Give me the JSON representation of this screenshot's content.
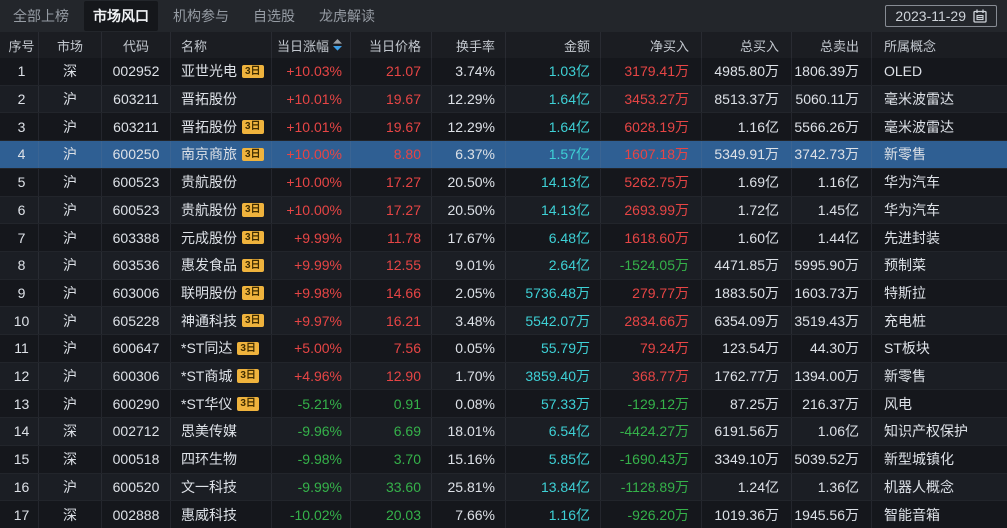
{
  "tabs": [
    {
      "id": "all-ranked",
      "label": "全部上榜",
      "active": false
    },
    {
      "id": "market-hotspot",
      "label": "市场风口",
      "active": true
    },
    {
      "id": "institution",
      "label": "机构参与",
      "active": false
    },
    {
      "id": "watchlist",
      "label": "自选股",
      "active": false
    },
    {
      "id": "dragon-tiger",
      "label": "龙虎解读",
      "active": false
    }
  ],
  "date_picker": {
    "value": "2023-11-29",
    "icon": "calendar-icon"
  },
  "columns": [
    {
      "key": "idx",
      "label": "序号"
    },
    {
      "key": "market",
      "label": "市场"
    },
    {
      "key": "code",
      "label": "代码"
    },
    {
      "key": "name",
      "label": "名称"
    },
    {
      "key": "change",
      "label": "当日涨幅",
      "sortable": true,
      "sort_direction": "desc"
    },
    {
      "key": "price",
      "label": "当日价格"
    },
    {
      "key": "turnover",
      "label": "换手率"
    },
    {
      "key": "amount",
      "label": "金额"
    },
    {
      "key": "net_buy",
      "label": "净买入"
    },
    {
      "key": "total_buy",
      "label": "总买入"
    },
    {
      "key": "total_sell",
      "label": "总卖出"
    },
    {
      "key": "concept",
      "label": "所属概念"
    }
  ],
  "rows": [
    {
      "idx": "1",
      "market": "深",
      "code": "002952",
      "name": "亚世光电",
      "badge": "3日",
      "change": "+10.03%",
      "price": "21.07",
      "turnover": "3.74%",
      "amount": "1.03亿",
      "net_buy": "3179.41万",
      "total_buy": "4985.80万",
      "total_sell": "1806.39万",
      "concept": "OLED",
      "highlighted": false
    },
    {
      "idx": "2",
      "market": "沪",
      "code": "603211",
      "name": "晋拓股份",
      "badge": "",
      "change": "+10.01%",
      "price": "19.67",
      "turnover": "12.29%",
      "amount": "1.64亿",
      "net_buy": "3453.27万",
      "total_buy": "8513.37万",
      "total_sell": "5060.11万",
      "concept": "毫米波雷达",
      "highlighted": false
    },
    {
      "idx": "3",
      "market": "沪",
      "code": "603211",
      "name": "晋拓股份",
      "badge": "3日",
      "change": "+10.01%",
      "price": "19.67",
      "turnover": "12.29%",
      "amount": "1.64亿",
      "net_buy": "6028.19万",
      "total_buy": "1.16亿",
      "total_sell": "5566.26万",
      "concept": "毫米波雷达",
      "highlighted": false
    },
    {
      "idx": "4",
      "market": "沪",
      "code": "600250",
      "name": "南京商旅",
      "badge": "3日",
      "change": "+10.00%",
      "price": "8.80",
      "turnover": "6.37%",
      "amount": "1.57亿",
      "net_buy": "1607.18万",
      "total_buy": "5349.91万",
      "total_sell": "3742.73万",
      "concept": "新零售",
      "highlighted": true
    },
    {
      "idx": "5",
      "market": "沪",
      "code": "600523",
      "name": "贵航股份",
      "badge": "",
      "change": "+10.00%",
      "price": "17.27",
      "turnover": "20.50%",
      "amount": "14.13亿",
      "net_buy": "5262.75万",
      "total_buy": "1.69亿",
      "total_sell": "1.16亿",
      "concept": "华为汽车",
      "highlighted": false
    },
    {
      "idx": "6",
      "market": "沪",
      "code": "600523",
      "name": "贵航股份",
      "badge": "3日",
      "change": "+10.00%",
      "price": "17.27",
      "turnover": "20.50%",
      "amount": "14.13亿",
      "net_buy": "2693.99万",
      "total_buy": "1.72亿",
      "total_sell": "1.45亿",
      "concept": "华为汽车",
      "highlighted": false
    },
    {
      "idx": "7",
      "market": "沪",
      "code": "603388",
      "name": "元成股份",
      "badge": "3日",
      "change": "+9.99%",
      "price": "11.78",
      "turnover": "17.67%",
      "amount": "6.48亿",
      "net_buy": "1618.60万",
      "total_buy": "1.60亿",
      "total_sell": "1.44亿",
      "concept": "先进封装",
      "highlighted": false
    },
    {
      "idx": "8",
      "market": "沪",
      "code": "603536",
      "name": "惠发食品",
      "badge": "3日",
      "change": "+9.99%",
      "price": "12.55",
      "turnover": "9.01%",
      "amount": "2.64亿",
      "net_buy": "-1524.05万",
      "total_buy": "4471.85万",
      "total_sell": "5995.90万",
      "concept": "预制菜",
      "highlighted": false
    },
    {
      "idx": "9",
      "market": "沪",
      "code": "603006",
      "name": "联明股份",
      "badge": "3日",
      "change": "+9.98%",
      "price": "14.66",
      "turnover": "2.05%",
      "amount": "5736.48万",
      "net_buy": "279.77万",
      "total_buy": "1883.50万",
      "total_sell": "1603.73万",
      "concept": "特斯拉",
      "highlighted": false
    },
    {
      "idx": "10",
      "market": "沪",
      "code": "605228",
      "name": "神通科技",
      "badge": "3日",
      "change": "+9.97%",
      "price": "16.21",
      "turnover": "3.48%",
      "amount": "5542.07万",
      "net_buy": "2834.66万",
      "total_buy": "6354.09万",
      "total_sell": "3519.43万",
      "concept": "充电桩",
      "highlighted": false
    },
    {
      "idx": "11",
      "market": "沪",
      "code": "600647",
      "name": "*ST同达",
      "badge": "3日",
      "change": "+5.00%",
      "price": "7.56",
      "turnover": "0.05%",
      "amount": "55.79万",
      "net_buy": "79.24万",
      "total_buy": "123.54万",
      "total_sell": "44.30万",
      "concept": "ST板块",
      "highlighted": false
    },
    {
      "idx": "12",
      "market": "沪",
      "code": "600306",
      "name": "*ST商城",
      "badge": "3日",
      "change": "+4.96%",
      "price": "12.90",
      "turnover": "1.70%",
      "amount": "3859.40万",
      "net_buy": "368.77万",
      "total_buy": "1762.77万",
      "total_sell": "1394.00万",
      "concept": "新零售",
      "highlighted": false
    },
    {
      "idx": "13",
      "market": "沪",
      "code": "600290",
      "name": "*ST华仪",
      "badge": "3日",
      "change": "-5.21%",
      "price": "0.91",
      "turnover": "0.08%",
      "amount": "57.33万",
      "net_buy": "-129.12万",
      "total_buy": "87.25万",
      "total_sell": "216.37万",
      "concept": "风电",
      "highlighted": false
    },
    {
      "idx": "14",
      "market": "深",
      "code": "002712",
      "name": "思美传媒",
      "badge": "",
      "change": "-9.96%",
      "price": "6.69",
      "turnover": "18.01%",
      "amount": "6.54亿",
      "net_buy": "-4424.27万",
      "total_buy": "6191.56万",
      "total_sell": "1.06亿",
      "concept": "知识产权保护",
      "highlighted": false
    },
    {
      "idx": "15",
      "market": "深",
      "code": "000518",
      "name": "四环生物",
      "badge": "",
      "change": "-9.98%",
      "price": "3.70",
      "turnover": "15.16%",
      "amount": "5.85亿",
      "net_buy": "-1690.43万",
      "total_buy": "3349.10万",
      "total_sell": "5039.52万",
      "concept": "新型城镇化",
      "highlighted": false
    },
    {
      "idx": "16",
      "market": "沪",
      "code": "600520",
      "name": "文一科技",
      "badge": "",
      "change": "-9.99%",
      "price": "33.60",
      "turnover": "25.81%",
      "amount": "13.84亿",
      "net_buy": "-1128.89万",
      "total_buy": "1.24亿",
      "total_sell": "1.36亿",
      "concept": "机器人概念",
      "highlighted": false
    },
    {
      "idx": "17",
      "market": "深",
      "code": "002888",
      "name": "惠威科技",
      "badge": "",
      "change": "-10.02%",
      "price": "20.03",
      "turnover": "7.66%",
      "amount": "1.16亿",
      "net_buy": "-926.20万",
      "total_buy": "1019.36万",
      "total_sell": "1945.56万",
      "concept": "智能音箱",
      "highlighted": false
    }
  ],
  "colors": {
    "up_red": "#e64545",
    "down_green": "#35b24a",
    "amount_cyan": "#3ed1d6",
    "highlight_row": "#2f5f93",
    "badge_bg": "#efb33d",
    "sort_active_blue": "#3d9fe8",
    "background": "#16181d",
    "topbar": "#23262b"
  }
}
